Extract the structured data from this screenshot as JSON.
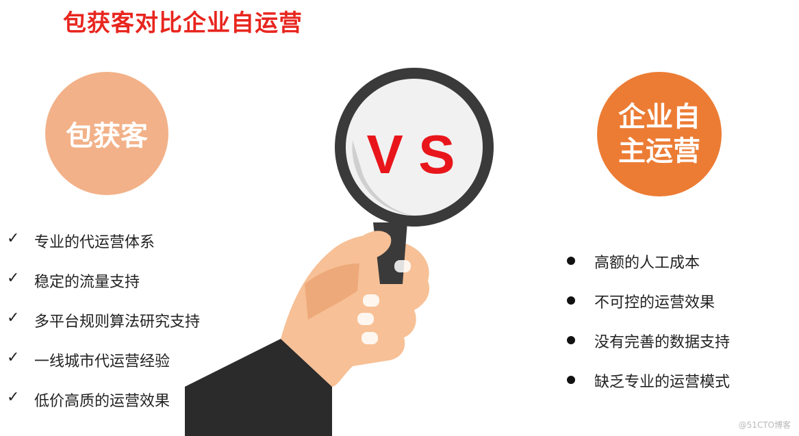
{
  "title": "包获客对比企业自运营",
  "left_circle_label": "包获客",
  "right_circle_label": "企业自主运营",
  "vs_text": "V S",
  "left_items": [
    "专业的代运营体系",
    "稳定的流量支持",
    "多平台规则算法研究支持",
    "一线城市代运营经验",
    "低价高质的运营效果"
  ],
  "right_items": [
    "高额的人工成本",
    "不可控的运营效果",
    "没有完善的数据支持",
    "缺乏专业的运营模式"
  ],
  "check_mark": "✓",
  "watermark": "@51CTO博客",
  "colors": {
    "title": "#e8261f",
    "left_circle": "#f2b188",
    "right_circle": "#ec7c34",
    "vs": "#e8161b",
    "lens_ring": "#3a3a3a",
    "skin": "#f7c096",
    "sleeve": "#2b2b2b"
  }
}
